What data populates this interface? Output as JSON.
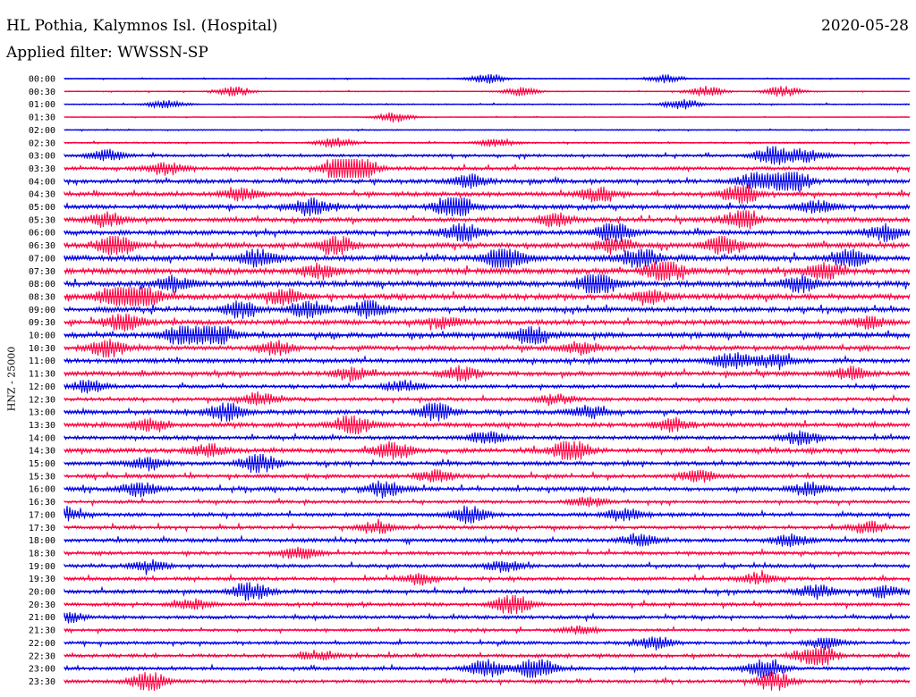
{
  "header": {
    "station": "HL Pothia, Kalymnos Isl. (Hospital)",
    "date": "2020-05-28",
    "filter": "Applied filter: WWSSN-SP"
  },
  "axis_label": "HNZ - 25000",
  "colors": {
    "even_trace": "#0000e6",
    "odd_trace": "#ff0040"
  },
  "chart_data": {
    "type": "line",
    "ylabel": "HNZ - 25000",
    "grid": false,
    "legend": "none",
    "trace_minutes": 30,
    "rows": [
      {
        "time": "00:00",
        "activity": 0.15,
        "events": [
          [
            0.5,
            0.5
          ],
          [
            0.71,
            0.4
          ]
        ]
      },
      {
        "time": "00:30",
        "activity": 0.15,
        "events": [
          [
            0.2,
            0.5
          ],
          [
            0.54,
            0.4
          ],
          [
            0.76,
            0.5
          ],
          [
            0.85,
            0.5
          ]
        ]
      },
      {
        "time": "01:00",
        "activity": 0.2,
        "events": [
          [
            0.12,
            0.4
          ],
          [
            0.73,
            0.5
          ]
        ]
      },
      {
        "time": "01:30",
        "activity": 0.12,
        "events": [
          [
            0.39,
            0.5
          ]
        ]
      },
      {
        "time": "02:00",
        "activity": 0.18,
        "events": []
      },
      {
        "time": "02:30",
        "activity": 0.25,
        "events": [
          [
            0.32,
            0.5
          ],
          [
            0.51,
            0.4
          ]
        ]
      },
      {
        "time": "03:00",
        "activity": 0.45,
        "events": [
          [
            0.05,
            0.6
          ],
          [
            0.84,
            1.0
          ],
          [
            0.88,
            0.6
          ]
        ]
      },
      {
        "time": "03:30",
        "activity": 0.55,
        "events": [
          [
            0.33,
            1.6
          ],
          [
            0.35,
            1.0
          ],
          [
            0.12,
            0.6
          ]
        ]
      },
      {
        "time": "04:00",
        "activity": 0.65,
        "events": [
          [
            0.82,
            0.9
          ],
          [
            0.86,
            1.3
          ],
          [
            0.48,
            0.6
          ]
        ]
      },
      {
        "time": "04:30",
        "activity": 0.65,
        "events": [
          [
            0.21,
            0.6
          ],
          [
            0.8,
            1.0
          ],
          [
            0.63,
            0.7
          ]
        ]
      },
      {
        "time": "05:00",
        "activity": 0.7,
        "events": [
          [
            0.29,
            0.8
          ],
          [
            0.46,
            1.3
          ],
          [
            0.89,
            0.6
          ]
        ]
      },
      {
        "time": "05:30",
        "activity": 0.7,
        "events": [
          [
            0.05,
            0.7
          ],
          [
            0.8,
            1.0
          ],
          [
            0.58,
            0.6
          ]
        ]
      },
      {
        "time": "06:00",
        "activity": 0.7,
        "events": [
          [
            0.47,
            0.9
          ],
          [
            0.65,
            1.0
          ],
          [
            0.97,
            0.8
          ]
        ]
      },
      {
        "time": "06:30",
        "activity": 0.8,
        "events": [
          [
            0.06,
            1.2
          ],
          [
            0.32,
            1.0
          ],
          [
            0.65,
            0.8
          ],
          [
            0.78,
            0.9
          ]
        ]
      },
      {
        "time": "07:00",
        "activity": 0.85,
        "events": [
          [
            0.23,
            0.9
          ],
          [
            0.52,
            1.3
          ],
          [
            0.68,
            1.0
          ],
          [
            0.93,
            0.9
          ]
        ]
      },
      {
        "time": "07:30",
        "activity": 0.85,
        "events": [
          [
            0.3,
            0.8
          ],
          [
            0.71,
            1.2
          ],
          [
            0.9,
            0.8
          ]
        ]
      },
      {
        "time": "08:00",
        "activity": 0.85,
        "events": [
          [
            0.13,
            0.7
          ],
          [
            0.63,
            1.3
          ],
          [
            0.87,
            0.8
          ]
        ]
      },
      {
        "time": "08:30",
        "activity": 0.85,
        "events": [
          [
            0.06,
            1.0
          ],
          [
            0.09,
            1.2
          ],
          [
            0.26,
            0.7
          ],
          [
            0.69,
            0.7
          ]
        ]
      },
      {
        "time": "09:00",
        "activity": 0.75,
        "events": [
          [
            0.21,
            0.8
          ],
          [
            0.29,
            0.8
          ],
          [
            0.36,
            0.9
          ]
        ]
      },
      {
        "time": "09:30",
        "activity": 0.75,
        "events": [
          [
            0.07,
            1.0
          ],
          [
            0.45,
            0.6
          ],
          [
            0.95,
            0.6
          ]
        ]
      },
      {
        "time": "10:00",
        "activity": 0.8,
        "events": [
          [
            0.14,
            1.1
          ],
          [
            0.18,
            1.0
          ],
          [
            0.55,
            0.9
          ]
        ]
      },
      {
        "time": "10:30",
        "activity": 0.7,
        "events": [
          [
            0.05,
            1.0
          ],
          [
            0.25,
            0.7
          ],
          [
            0.61,
            0.6
          ]
        ]
      },
      {
        "time": "11:00",
        "activity": 0.7,
        "events": [
          [
            0.79,
            0.8
          ],
          [
            0.84,
            0.7
          ]
        ]
      },
      {
        "time": "11:30",
        "activity": 0.7,
        "events": [
          [
            0.34,
            0.6
          ],
          [
            0.47,
            0.7
          ],
          [
            0.93,
            0.6
          ]
        ]
      },
      {
        "time": "12:00",
        "activity": 0.55,
        "events": [
          [
            0.03,
            0.6
          ],
          [
            0.4,
            0.6
          ]
        ]
      },
      {
        "time": "12:30",
        "activity": 0.55,
        "events": [
          [
            0.23,
            0.6
          ],
          [
            0.58,
            0.5
          ]
        ]
      },
      {
        "time": "13:00",
        "activity": 0.7,
        "events": [
          [
            0.19,
            1.0
          ],
          [
            0.44,
            0.9
          ],
          [
            0.62,
            0.6
          ]
        ]
      },
      {
        "time": "13:30",
        "activity": 0.7,
        "events": [
          [
            0.1,
            0.6
          ],
          [
            0.34,
            1.0
          ],
          [
            0.72,
            0.6
          ]
        ]
      },
      {
        "time": "14:00",
        "activity": 0.6,
        "events": [
          [
            0.5,
            0.6
          ],
          [
            0.87,
            0.6
          ]
        ]
      },
      {
        "time": "14:30",
        "activity": 0.7,
        "events": [
          [
            0.39,
            0.9
          ],
          [
            0.6,
            1.1
          ],
          [
            0.17,
            0.6
          ]
        ]
      },
      {
        "time": "15:00",
        "activity": 0.65,
        "events": [
          [
            0.23,
            1.0
          ],
          [
            0.1,
            0.6
          ]
        ]
      },
      {
        "time": "15:30",
        "activity": 0.6,
        "events": [
          [
            0.44,
            0.6
          ],
          [
            0.75,
            0.6
          ]
        ]
      },
      {
        "time": "16:00",
        "activity": 0.65,
        "events": [
          [
            0.09,
            0.7
          ],
          [
            0.38,
            0.8
          ],
          [
            0.88,
            0.6
          ]
        ]
      },
      {
        "time": "16:30",
        "activity": 0.5,
        "events": [
          [
            0.62,
            0.5
          ]
        ]
      },
      {
        "time": "17:00",
        "activity": 0.6,
        "events": [
          [
            0.0,
            0.7
          ],
          [
            0.48,
            0.8
          ],
          [
            0.66,
            0.6
          ]
        ]
      },
      {
        "time": "17:30",
        "activity": 0.55,
        "events": [
          [
            0.37,
            0.6
          ],
          [
            0.95,
            0.6
          ]
        ]
      },
      {
        "time": "18:00",
        "activity": 0.6,
        "events": [
          [
            0.68,
            0.6
          ],
          [
            0.86,
            0.6
          ]
        ]
      },
      {
        "time": "18:30",
        "activity": 0.55,
        "events": [
          [
            0.28,
            0.6
          ]
        ]
      },
      {
        "time": "19:00",
        "activity": 0.55,
        "events": [
          [
            0.1,
            0.6
          ],
          [
            0.52,
            0.5
          ]
        ]
      },
      {
        "time": "19:30",
        "activity": 0.55,
        "events": [
          [
            0.42,
            0.5
          ],
          [
            0.82,
            0.5
          ]
        ]
      },
      {
        "time": "20:00",
        "activity": 0.6,
        "events": [
          [
            0.22,
            1.0
          ],
          [
            0.89,
            0.7
          ],
          [
            0.97,
            0.6
          ]
        ]
      },
      {
        "time": "20:30",
        "activity": 0.55,
        "events": [
          [
            0.53,
            1.1
          ],
          [
            0.15,
            0.5
          ]
        ]
      },
      {
        "time": "21:00",
        "activity": 0.55,
        "events": [
          [
            0.0,
            0.6
          ]
        ]
      },
      {
        "time": "21:30",
        "activity": 0.45,
        "events": [
          [
            0.61,
            0.4
          ]
        ]
      },
      {
        "time": "22:00",
        "activity": 0.5,
        "events": [
          [
            0.7,
            0.6
          ],
          [
            0.9,
            0.5
          ]
        ]
      },
      {
        "time": "22:30",
        "activity": 0.55,
        "events": [
          [
            0.89,
            1.4
          ],
          [
            0.3,
            0.5
          ]
        ]
      },
      {
        "time": "23:00",
        "activity": 0.55,
        "events": [
          [
            0.5,
            0.9
          ],
          [
            0.56,
            1.1
          ],
          [
            0.83,
            1.0
          ]
        ]
      },
      {
        "time": "23:30",
        "activity": 0.5,
        "events": [
          [
            0.1,
            1.0
          ],
          [
            0.84,
            0.9
          ]
        ]
      }
    ]
  }
}
